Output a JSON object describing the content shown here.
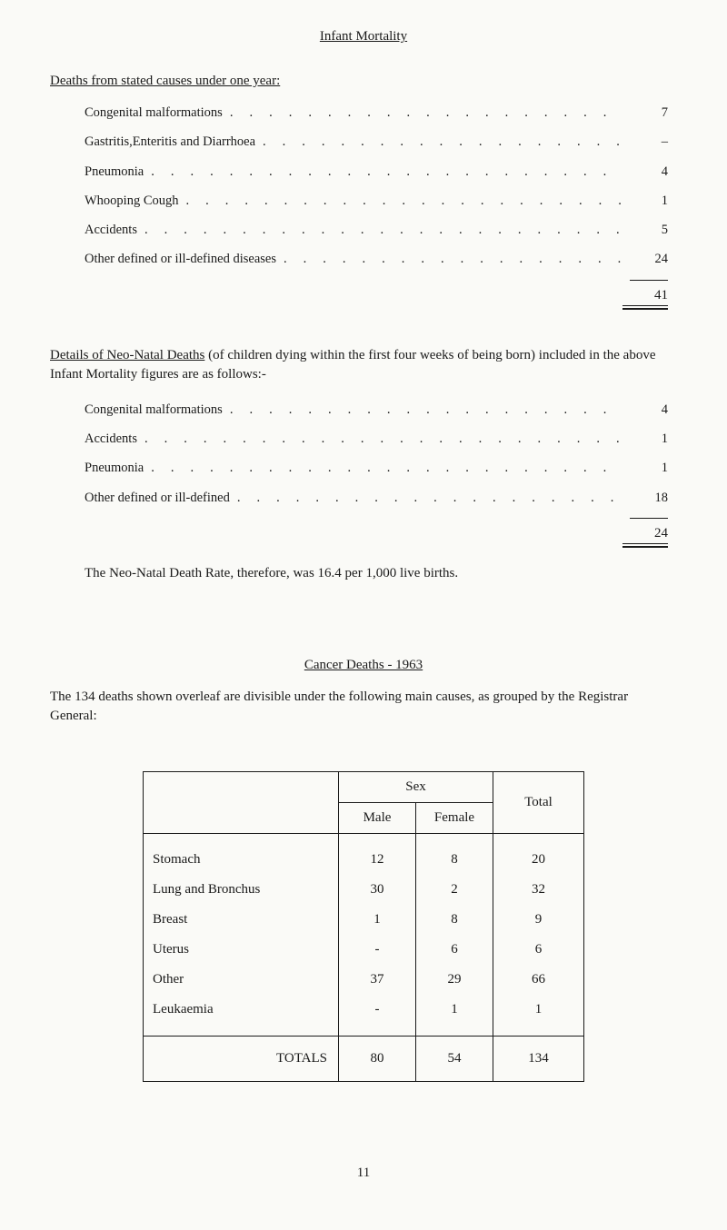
{
  "title": "Infant Mortality",
  "stated": {
    "heading": "Deaths from stated causes under one year:",
    "rows": [
      {
        "label": "Congenital malformations",
        "value": "7"
      },
      {
        "label": "Gastritis,Enteritis and Diarrhoea",
        "value": "–"
      },
      {
        "label": "Pneumonia",
        "value": "4"
      },
      {
        "label": "Whooping Cough",
        "value": "1"
      },
      {
        "label": "Accidents",
        "value": "5"
      },
      {
        "label": "Other defined or ill-defined diseases",
        "value": "24"
      }
    ],
    "total": "41"
  },
  "neonatal": {
    "heading_underlined": "Details of Neo-Natal Deaths",
    "heading_rest": "(of children dying within the first four weeks of being born)  included in the above Infant Mortality figures are as follows:-",
    "rows": [
      {
        "label": "Congenital malformations",
        "value": "4"
      },
      {
        "label": "Accidents",
        "value": "1"
      },
      {
        "label": "Pneumonia",
        "value": "1"
      },
      {
        "label": "Other defined or ill-defined",
        "value": "18"
      }
    ],
    "total": "24",
    "rate_line": "The Neo-Natal Death Rate, therefore, was 16.4  per 1,000 live births."
  },
  "cancer": {
    "heading": "Cancer Deaths - 1963",
    "lead": "The 134 deaths shown overleaf are divisible under the following main causes, as grouped by the Registrar General:",
    "sex_header": "Sex",
    "male_header": "Male",
    "female_header": "Female",
    "total_header": "Total",
    "rows": [
      {
        "cause": "Stomach",
        "male": "12",
        "female": "8",
        "total": "20"
      },
      {
        "cause": "Lung and Bronchus",
        "male": "30",
        "female": "2",
        "total": "32"
      },
      {
        "cause": "Breast",
        "male": "1",
        "female": "8",
        "total": "9"
      },
      {
        "cause": "Uterus",
        "male": "-",
        "female": "6",
        "total": "6"
      },
      {
        "cause": "Other",
        "male": "37",
        "female": "29",
        "total": "66"
      },
      {
        "cause": "Leukaemia",
        "male": "-",
        "female": "1",
        "total": "1"
      }
    ],
    "totals_label": "TOTALS",
    "totals": {
      "male": "80",
      "female": "54",
      "total": "134"
    }
  },
  "page_number": "11",
  "dot_fill": ". . . . . . . . . .",
  "style": {
    "background_color": "#fafaf7",
    "text_color": "#1a1a1a",
    "font_family": "Georgia",
    "base_fontsize": 15,
    "table_border_color": "#1a1a1a"
  }
}
